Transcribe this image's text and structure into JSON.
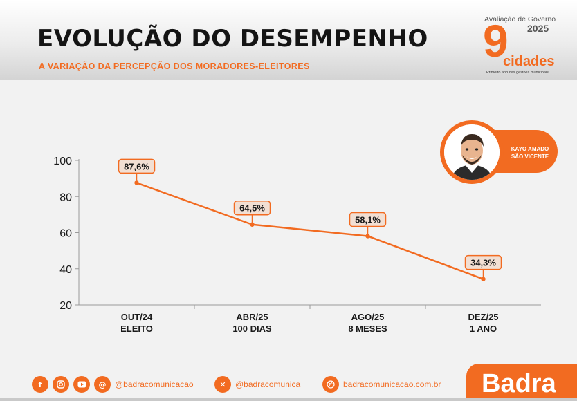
{
  "header": {
    "title": "EVOLUÇÃO DO DESEMPENHO",
    "subtitle": "A VARIAÇÃO DA PERCEPÇÃO DOS MORADORES-ELEITORES"
  },
  "logo": {
    "caption": "Avaliação de Governo",
    "year": "2025",
    "number": "9",
    "word": "cidades",
    "tagline": "Primeiro ano das gestões municipais"
  },
  "badge": {
    "name_line1": "KAYO AMADO",
    "name_line2": "SÃO VICENTE"
  },
  "chart_data": {
    "type": "line",
    "categories": [
      {
        "line1": "OUT/24",
        "line2": "ELEITO"
      },
      {
        "line1": "ABR/25",
        "line2": "100 DIAS"
      },
      {
        "line1": "AGO/25",
        "line2": "8 MESES"
      },
      {
        "line1": "DEZ/25",
        "line2": "1 ANO"
      }
    ],
    "values": [
      87.6,
      64.5,
      58.1,
      34.3
    ],
    "value_labels": [
      "87,6%",
      "64,5%",
      "58,1%",
      "34,3%"
    ],
    "yticks": [
      "20",
      "40",
      "60",
      "80",
      "100"
    ],
    "ylim": [
      20,
      100
    ],
    "grid": false,
    "colors": {
      "line": "#f26b21",
      "label_bg": "#f2dfd3"
    }
  },
  "footer": {
    "handle_1": "@badracomunicacao",
    "handle_2": "@badracomunica",
    "website": "badracomunicacao.com.br",
    "brand": "Badra"
  },
  "icons": [
    "facebook-icon",
    "instagram-icon",
    "youtube-icon",
    "threads-icon",
    "x-icon",
    "dribbble-icon"
  ]
}
